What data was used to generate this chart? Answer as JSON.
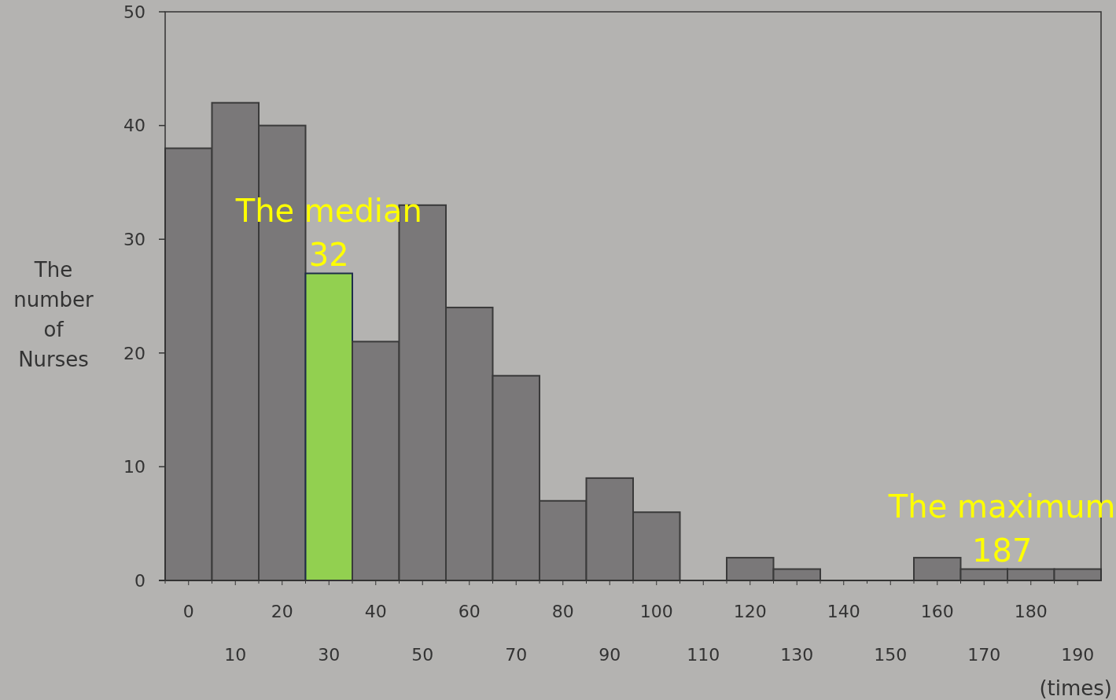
{
  "chart_data": {
    "type": "bar",
    "xlabel": "(times)",
    "ylabel": "The number of Nurses",
    "categories": [
      "0",
      "10",
      "20",
      "30",
      "40",
      "50",
      "60",
      "70",
      "80",
      "90",
      "100",
      "110",
      "120",
      "130",
      "140",
      "150",
      "160",
      "170",
      "180",
      "190"
    ],
    "values": [
      38,
      42,
      40,
      27,
      21,
      33,
      24,
      18,
      7,
      9,
      6,
      0,
      2,
      1,
      0,
      0,
      2,
      1,
      1,
      1
    ],
    "colors": [
      "#7a7879",
      "#7a7879",
      "#7a7879",
      "#92d050",
      "#7a7879",
      "#7a7879",
      "#7a7879",
      "#7a7879",
      "#7a7879",
      "#7a7879",
      "#7a7879",
      "#7a7879",
      "#7a7879",
      "#7a7879",
      "#7a7879",
      "#7a7879",
      "#7a7879",
      "#7a7879",
      "#7a7879",
      "#7a7879"
    ],
    "ylim": [
      0,
      50
    ],
    "yticks": [
      0,
      10,
      20,
      30,
      40,
      50
    ],
    "grid": false,
    "annotations": [
      {
        "text": "The median\n32",
        "x": "30",
        "y": 27
      },
      {
        "text": "The maximum\n187",
        "x": "180",
        "y": 1
      }
    ]
  }
}
